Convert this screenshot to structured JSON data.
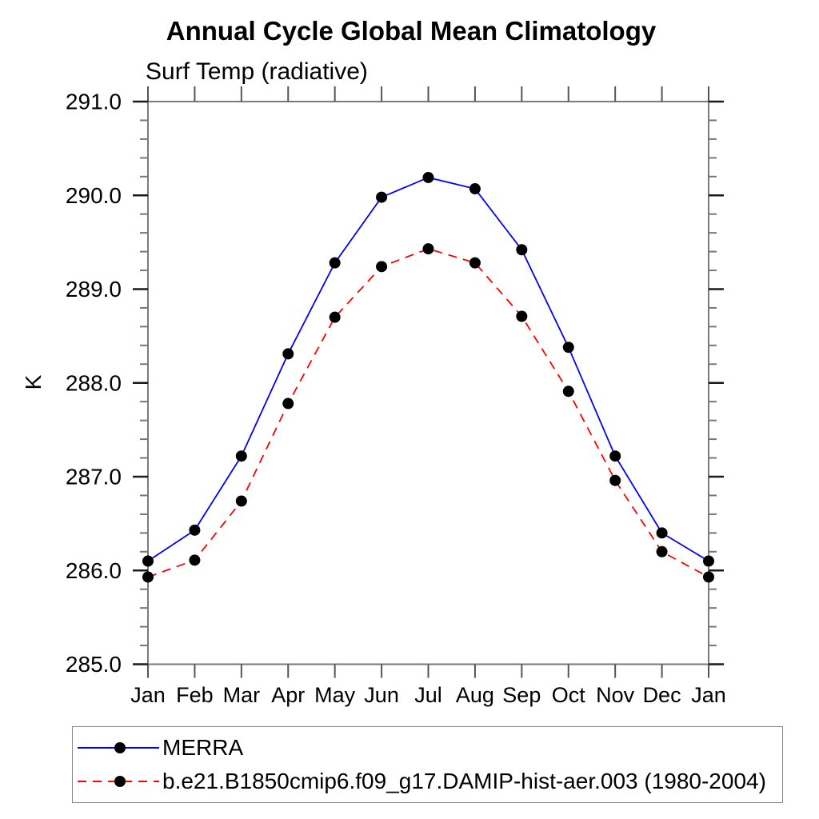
{
  "chart_data": {
    "type": "line",
    "title": "Annual Cycle Global Mean Climatology",
    "subtitle": "Surf Temp (radiative)",
    "ylabel": "K",
    "categories": [
      "Jan",
      "Feb",
      "Mar",
      "Apr",
      "May",
      "Jun",
      "Jul",
      "Aug",
      "Sep",
      "Oct",
      "Nov",
      "Dec",
      "Jan"
    ],
    "ylim": [
      285.0,
      291.0
    ],
    "ytick_major_step": 1.0,
    "ytick_minor_step": 0.2,
    "ytick_labels": [
      "285.0",
      "286.0",
      "287.0",
      "288.0",
      "289.0",
      "290.0",
      "291.0"
    ],
    "grid": false,
    "legend_position": "bottom-left",
    "marker_color": "#000000",
    "series": [
      {
        "name": "MERRA",
        "color": "#0000ff",
        "style": "solid",
        "values": [
          286.1,
          286.43,
          287.22,
          288.31,
          289.28,
          289.98,
          290.19,
          290.07,
          289.42,
          288.38,
          287.22,
          286.4,
          286.1
        ]
      },
      {
        "name": "b.e21.B1850cmip6.f09_g17.DAMIP-hist-aer.003 (1980-2004)",
        "color": "#ff0000",
        "style": "dashed",
        "values": [
          285.93,
          286.11,
          286.74,
          287.78,
          288.7,
          289.24,
          289.43,
          289.28,
          288.71,
          287.91,
          286.96,
          286.2,
          285.93
        ]
      }
    ]
  }
}
